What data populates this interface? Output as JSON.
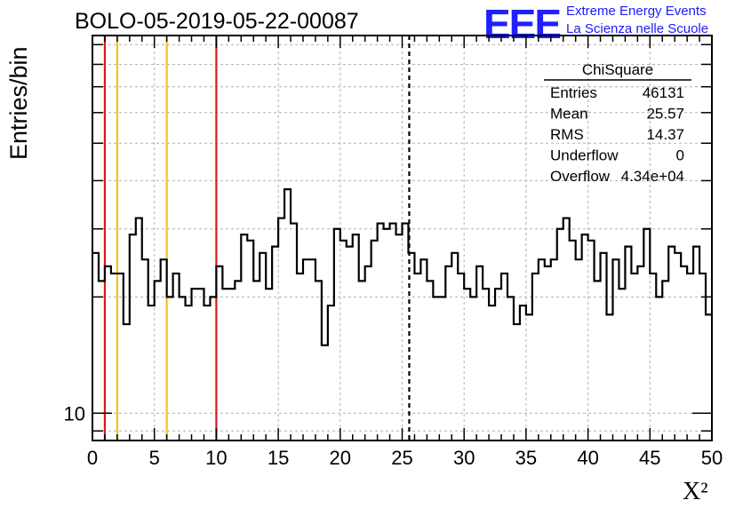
{
  "header": {
    "title": "BOLO-05-2019-05-22-00087",
    "logo_mark": "EEE",
    "logo_line1": "Extreme Energy Events",
    "logo_line2": "La Scienza nelle Scuole"
  },
  "colors": {
    "histogram": "#000000",
    "grid": "#b0b0b0",
    "red_line": "#e0161b",
    "yellow_line": "#f5c218",
    "logo": "#2020ff"
  },
  "stats_box": {
    "title": "ChiSquare",
    "rows": [
      {
        "label": "Entries",
        "value": "46131"
      },
      {
        "label": "Mean",
        "value": "25.57"
      },
      {
        "label": "RMS",
        "value": "14.37"
      },
      {
        "label": "Underflow",
        "value": "0"
      },
      {
        "label": "Overflow",
        "value": "4.34e+04"
      }
    ]
  },
  "chart_data": {
    "type": "histogram",
    "title": "BOLO-05-2019-05-22-00087",
    "xlabel": "X²",
    "ylabel": "Entries/bin",
    "xlim": [
      0,
      50
    ],
    "ylim": [
      8.5,
      95
    ],
    "yscale": "log",
    "grid": true,
    "bin_width": 0.5,
    "x_ticks": [
      0,
      5,
      10,
      15,
      20,
      25,
      30,
      35,
      40,
      45,
      50
    ],
    "x_tick_labels": [
      "0",
      "5",
      "10",
      "15",
      "20",
      "25",
      "30",
      "35",
      "40",
      "45",
      "50"
    ],
    "y_tick_labels": [
      {
        "value": 10,
        "label": "10"
      }
    ],
    "values": [
      26,
      22,
      24,
      23,
      23,
      17,
      29,
      32,
      25,
      19,
      22,
      25,
      20,
      23,
      20,
      19,
      21,
      21,
      19,
      20,
      24,
      21,
      21,
      22,
      29,
      28,
      22,
      26,
      21,
      27,
      32,
      38,
      31,
      23,
      25,
      25,
      22,
      15,
      19,
      30,
      28,
      27,
      29,
      22,
      24,
      28,
      31,
      30,
      31,
      29,
      31,
      26,
      23,
      25,
      22,
      20,
      20,
      24,
      26,
      23,
      21,
      20,
      24,
      21,
      19,
      21,
      23,
      20,
      17,
      19,
      18,
      23,
      25,
      24,
      25,
      30,
      32,
      28,
      25,
      29,
      28,
      22,
      26,
      18,
      25,
      21,
      27,
      23,
      24,
      30,
      23,
      20,
      22,
      27,
      26,
      24,
      23,
      27,
      23,
      18
    ],
    "vertical_lines": [
      {
        "x": 1,
        "color": "red",
        "style": "solid"
      },
      {
        "x": 2,
        "color": "yellow",
        "style": "solid"
      },
      {
        "x": 6,
        "color": "yellow",
        "style": "solid"
      },
      {
        "x": 10,
        "color": "red",
        "style": "solid"
      },
      {
        "x": 25.57,
        "color": "black",
        "style": "dashed"
      }
    ]
  }
}
